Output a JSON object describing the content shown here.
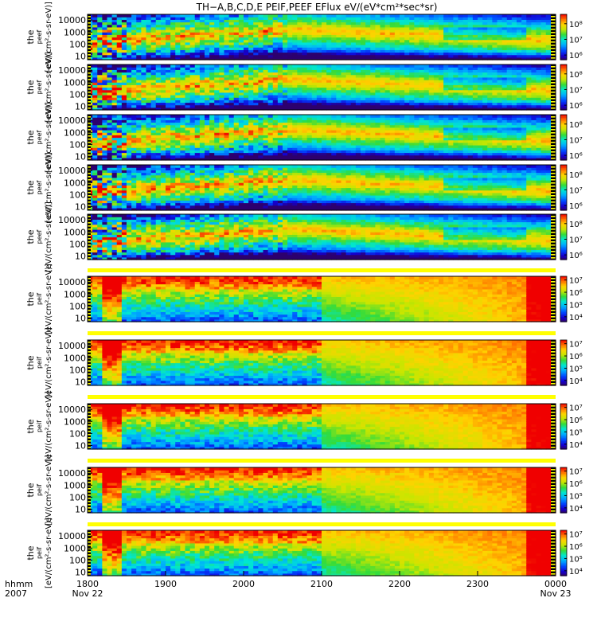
{
  "figure": {
    "title": "TH−A,B,C,D,E PEIF,PEEF EFlux eV/(eV*cm²*sec*sr)",
    "y_ticks": [
      "10000",
      "1000",
      "100",
      "10"
    ],
    "x_ticks": [
      "1800",
      "1900",
      "2000",
      "2100",
      "2200",
      "2300",
      "0000"
    ],
    "x_dates": [
      "Nov 22",
      "Nov 23"
    ],
    "x_corner_labels": [
      "hhmm",
      "2007"
    ]
  },
  "chart_data": [
    {
      "type": "heatmap",
      "panel": 1,
      "ylabel": "the",
      "ylabel_sub": "peef",
      "ylabel_unit": "[eV/(cm²-s-sr-eV)]",
      "x_range": [
        "1800",
        "0000"
      ],
      "y_range": [
        5,
        30000
      ],
      "y_scale": "log",
      "colorbar_ticks": [
        "10⁸",
        "10⁷",
        "10⁶"
      ],
      "colorbar_exponents": [
        8,
        7,
        6
      ],
      "colorbar_range_exp": [
        5.7,
        8.6
      ]
    },
    {
      "type": "heatmap",
      "panel": 2,
      "ylabel": "the",
      "ylabel_sub": "peef",
      "ylabel_unit": "[eV/(cm²-s-sr-eV)]",
      "x_range": [
        "1800",
        "0000"
      ],
      "y_range": [
        5,
        30000
      ],
      "y_scale": "log",
      "colorbar_ticks": [
        "10⁸",
        "10⁷",
        "10⁶"
      ],
      "colorbar_exponents": [
        8,
        7,
        6
      ],
      "colorbar_range_exp": [
        5.7,
        8.6
      ]
    },
    {
      "type": "heatmap",
      "panel": 3,
      "ylabel": "the",
      "ylabel_sub": "peef",
      "ylabel_unit": "[eV/(cm²-s-sr-eV)]",
      "x_range": [
        "1800",
        "0000"
      ],
      "y_range": [
        5,
        30000
      ],
      "y_scale": "log",
      "colorbar_ticks": [
        "10⁸",
        "10⁷",
        "10⁶"
      ],
      "colorbar_exponents": [
        8,
        7,
        6
      ],
      "colorbar_range_exp": [
        5.7,
        8.6
      ]
    },
    {
      "type": "heatmap",
      "panel": 4,
      "ylabel": "the",
      "ylabel_sub": "peef",
      "ylabel_unit": "[eV/(cm²-s-sr-eV)]",
      "x_range": [
        "1800",
        "0000"
      ],
      "y_range": [
        5,
        30000
      ],
      "y_scale": "log",
      "colorbar_ticks": [
        "10⁸",
        "10⁷",
        "10⁶"
      ],
      "colorbar_exponents": [
        8,
        7,
        6
      ],
      "colorbar_range_exp": [
        5.7,
        8.6
      ]
    },
    {
      "type": "heatmap",
      "panel": 5,
      "ylabel": "the",
      "ylabel_sub": "peef",
      "ylabel_unit": "[eV/(cm²-s-sr-eV)]",
      "x_range": [
        "1800",
        "0000"
      ],
      "y_range": [
        5,
        30000
      ],
      "y_scale": "log",
      "colorbar_ticks": [
        "10⁸",
        "10⁷",
        "10⁶"
      ],
      "colorbar_exponents": [
        8,
        7,
        6
      ],
      "colorbar_range_exp": [
        5.7,
        8.6
      ]
    },
    {
      "type": "heatmap",
      "panel": 6,
      "ylabel": "the",
      "ylabel_sub": "peif",
      "ylabel_unit": "[eV/(cm²-s-sr-eV)]",
      "x_range": [
        "1800",
        "0000"
      ],
      "y_range": [
        5,
        30000
      ],
      "y_scale": "log",
      "colorbar_ticks": [
        "10⁷",
        "10⁶",
        "10⁵",
        "10⁴"
      ],
      "colorbar_exponents": [
        7,
        6,
        5,
        4
      ],
      "colorbar_range_exp": [
        3.6,
        7.3
      ]
    },
    {
      "type": "heatmap",
      "panel": 7,
      "ylabel": "the",
      "ylabel_sub": "peif",
      "ylabel_unit": "[eV/(cm²-s-sr-eV)]",
      "x_range": [
        "1800",
        "0000"
      ],
      "y_range": [
        5,
        30000
      ],
      "y_scale": "log",
      "colorbar_ticks": [
        "10⁷",
        "10⁶",
        "10⁵",
        "10⁴"
      ],
      "colorbar_exponents": [
        7,
        6,
        5,
        4
      ],
      "colorbar_range_exp": [
        3.6,
        7.3
      ]
    },
    {
      "type": "heatmap",
      "panel": 8,
      "ylabel": "the",
      "ylabel_sub": "peif",
      "ylabel_unit": "[eV/(cm²-s-sr-eV)]",
      "x_range": [
        "1800",
        "0000"
      ],
      "y_range": [
        5,
        30000
      ],
      "y_scale": "log",
      "colorbar_ticks": [
        "10⁷",
        "10⁶",
        "10⁵",
        "10⁴"
      ],
      "colorbar_exponents": [
        7,
        6,
        5,
        4
      ],
      "colorbar_range_exp": [
        3.6,
        7.3
      ]
    },
    {
      "type": "heatmap",
      "panel": 9,
      "ylabel": "the",
      "ylabel_sub": "peif",
      "ylabel_unit": "[eV/(cm²-s-sr-eV)]",
      "x_range": [
        "1800",
        "0000"
      ],
      "y_range": [
        5,
        30000
      ],
      "y_scale": "log",
      "colorbar_ticks": [
        "10⁷",
        "10⁶",
        "10⁵",
        "10⁴"
      ],
      "colorbar_exponents": [
        7,
        6,
        5,
        4
      ],
      "colorbar_range_exp": [
        3.6,
        7.3
      ]
    },
    {
      "type": "heatmap",
      "panel": 10,
      "ylabel": "the",
      "ylabel_sub": "peif",
      "ylabel_unit": "[eV/(cm²-s-sr-eV)]",
      "x_range": [
        "1800",
        "0000"
      ],
      "y_range": [
        5,
        30000
      ],
      "y_scale": "log",
      "colorbar_ticks": [
        "10⁷",
        "10⁶",
        "10⁵",
        "10⁴"
      ],
      "colorbar_exponents": [
        7,
        6,
        5,
        4
      ],
      "colorbar_range_exp": [
        3.6,
        7.3
      ]
    }
  ]
}
